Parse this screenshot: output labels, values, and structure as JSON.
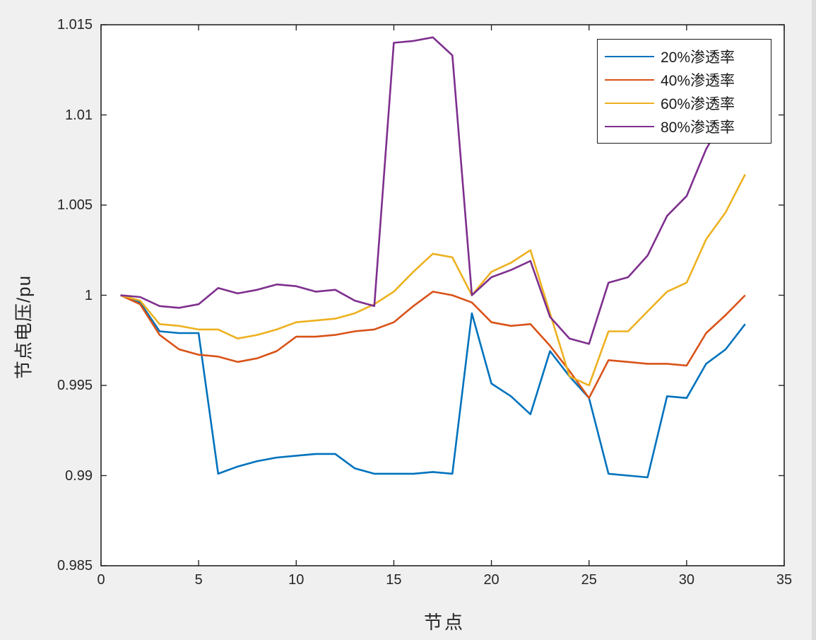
{
  "figure": {
    "background": "#f0f0f0",
    "plot_background": "#ffffff",
    "axis_color": "#262626"
  },
  "chart_data": {
    "type": "line",
    "title": "",
    "xlabel": "节点",
    "ylabel": "节点电压/pu",
    "xlim": [
      0,
      35
    ],
    "ylim": [
      0.985,
      1.015
    ],
    "grid": false,
    "legend_position": "top-right",
    "x_tick_labels": [
      "0",
      "5",
      "10",
      "15",
      "20",
      "25",
      "30",
      "35"
    ],
    "x_ticks": [
      0,
      5,
      10,
      15,
      20,
      25,
      30,
      35
    ],
    "y_tick_labels": [
      "0.985",
      "0.99",
      "0.995",
      "1",
      "1.005",
      "1.01",
      "1.015"
    ],
    "y_ticks": [
      0.985,
      0.99,
      0.995,
      1,
      1.005,
      1.01,
      1.015
    ],
    "x": [
      1,
      2,
      3,
      4,
      5,
      6,
      7,
      8,
      9,
      10,
      11,
      12,
      13,
      14,
      15,
      16,
      17,
      18,
      19,
      20,
      21,
      22,
      23,
      24,
      25,
      26,
      27,
      28,
      29,
      30,
      31,
      32,
      33
    ],
    "series": [
      {
        "name": "20%渗透率",
        "color": "#0072BD",
        "values": [
          1.0,
          0.9996,
          0.998,
          0.9979,
          0.9979,
          0.9901,
          0.9905,
          0.9908,
          0.991,
          0.9911,
          0.9912,
          0.9912,
          0.9904,
          0.9901,
          0.9901,
          0.9901,
          0.9902,
          0.9901,
          0.999,
          0.9951,
          0.9944,
          0.9934,
          0.9969,
          0.9955,
          0.9943,
          0.9901,
          0.99,
          0.9899,
          0.9944,
          0.9943,
          0.9962,
          0.997,
          0.9984
        ]
      },
      {
        "name": "40%渗透率",
        "color": "#D95319",
        "values": [
          1.0,
          0.9995,
          0.9978,
          0.997,
          0.9967,
          0.9966,
          0.9963,
          0.9965,
          0.9969,
          0.9977,
          0.9977,
          0.9978,
          0.998,
          0.9981,
          0.9985,
          0.9994,
          1.0002,
          1.0,
          0.9996,
          0.9985,
          0.9983,
          0.9984,
          0.9972,
          0.9958,
          0.9943,
          0.9964,
          0.9963,
          0.9962,
          0.9962,
          0.9961,
          0.9979,
          0.9989,
          1.0
        ]
      },
      {
        "name": "60%渗透率",
        "color": "#EDB120",
        "values": [
          1.0,
          0.9997,
          0.9984,
          0.9983,
          0.9981,
          0.9981,
          0.9976,
          0.9978,
          0.9981,
          0.9985,
          0.9986,
          0.9987,
          0.999,
          0.9995,
          1.0002,
          1.0013,
          1.0023,
          1.0021,
          1.0,
          1.0013,
          1.0018,
          1.0025,
          0.999,
          0.9955,
          0.995,
          0.998,
          0.998,
          0.9991,
          1.0002,
          1.0007,
          1.0031,
          1.0046,
          1.0067
        ]
      },
      {
        "name": "80%渗透率",
        "color": "#7E2F8E",
        "values": [
          1.0,
          0.9999,
          0.9994,
          0.9993,
          0.9995,
          1.0004,
          1.0001,
          1.0003,
          1.0006,
          1.0005,
          1.0002,
          1.0003,
          0.9997,
          0.9994,
          1.014,
          1.0141,
          1.0143,
          1.0133,
          1.0,
          1.001,
          1.0014,
          1.0019,
          0.9988,
          0.9976,
          0.9973,
          1.0007,
          1.001,
          1.0022,
          1.0044,
          1.0055,
          1.0081,
          1.01,
          1.012
        ]
      }
    ]
  }
}
